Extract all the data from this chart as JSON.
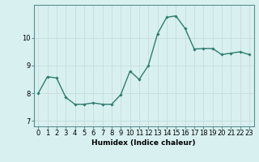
{
  "x": [
    0,
    1,
    2,
    3,
    4,
    5,
    6,
    7,
    8,
    9,
    10,
    11,
    12,
    13,
    14,
    15,
    16,
    17,
    18,
    19,
    20,
    21,
    22,
    23
  ],
  "y": [
    8.0,
    8.6,
    8.55,
    7.85,
    7.6,
    7.6,
    7.65,
    7.6,
    7.6,
    7.95,
    8.8,
    8.5,
    9.0,
    10.15,
    10.75,
    10.8,
    10.35,
    9.6,
    9.62,
    9.62,
    9.4,
    9.45,
    9.5,
    9.4
  ],
  "line_color": "#2e7d70",
  "marker": "D",
  "marker_size": 1.8,
  "bg_color": "#d8f0f0",
  "grid_color": "#c8dede",
  "xlabel": "Humidex (Indice chaleur)",
  "ylabel": "",
  "xlim": [
    -0.5,
    23.5
  ],
  "ylim": [
    6.8,
    11.2
  ],
  "yticks": [
    7,
    8,
    9,
    10
  ],
  "xticks": [
    0,
    1,
    2,
    3,
    4,
    5,
    6,
    7,
    8,
    9,
    10,
    11,
    12,
    13,
    14,
    15,
    16,
    17,
    18,
    19,
    20,
    21,
    22,
    23
  ],
  "xlabel_fontsize": 6.5,
  "tick_fontsize": 6,
  "line_width": 1.0,
  "grid_linewidth": 0.6,
  "spine_color": "#5a9090"
}
